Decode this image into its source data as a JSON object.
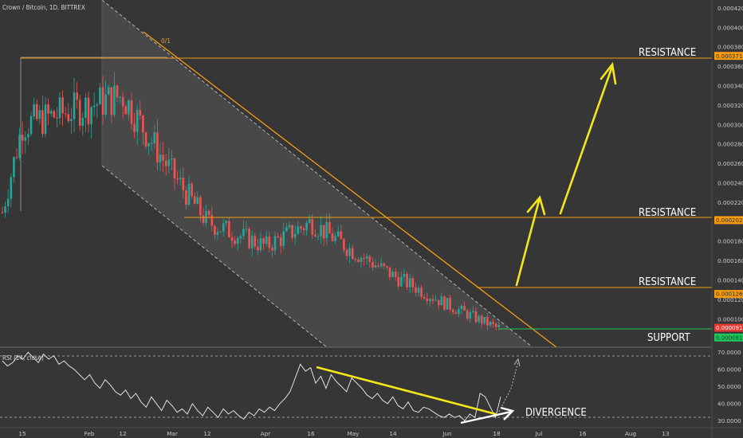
{
  "header": {
    "symbol": "Crown / Bitcoin, 1D, BITTREX",
    "rsi_label": "RSI (14, close)"
  },
  "colors": {
    "background": "#363636",
    "channel_fill": "#4a4a4a",
    "up": "#26a69a",
    "down": "#ef5350",
    "orange": "#f39c12",
    "yellow": "#f5e61a",
    "support_green": "#22c55e"
  },
  "fib_label": "0/1",
  "chart_data": [
    {
      "type": "candlestick",
      "title": "",
      "y_ticks": [
        "0.00042000",
        "0.00040000",
        "0.00038000",
        "0.00036000",
        "0.00034000",
        "0.00032000",
        "0.00030000",
        "0.00028000",
        "0.00026000",
        "0.00024000",
        "0.00022000",
        "0.00020000",
        "0.00018000",
        "0.00016000",
        "0.00014000",
        "0.00012000",
        "0.00010000",
        "0.00008000"
      ],
      "x_ticks": [
        "15",
        "Feb",
        "12",
        "Mar",
        "12",
        "Apr",
        "16",
        "May",
        "14",
        "Jun",
        "18",
        "Jul",
        "16",
        "Aug",
        "13"
      ],
      "ylim": [
        7.12e-05,
        0.0004285
      ],
      "price_levels": [
        {
          "label": "RESISTANCE",
          "price_tag": "0.00037100",
          "value": 0.000371
        },
        {
          "label": "RESISTANCE",
          "price_tag": "0.00020200",
          "value": 0.000202
        },
        {
          "label": "RESISTANCE",
          "price_tag": "0.00012600",
          "value": 0.000126
        },
        {
          "label": "SUPPORT",
          "price_tag": "0.00008125",
          "value": 8.12e-05
        }
      ],
      "current_price_tag": "0.00009125",
      "current_price": 9.12e-05,
      "series_overview": [
        {
          "date": "Jan 15",
          "close": 0.0003
        },
        {
          "date": "Feb",
          "close": 0.00032
        },
        {
          "date": "Feb 12",
          "close": 0.00033
        },
        {
          "date": "Mar",
          "close": 0.00025
        },
        {
          "date": "Mar 12",
          "close": 0.0002
        },
        {
          "date": "Apr",
          "close": 0.000175
        },
        {
          "date": "Apr 16",
          "close": 0.0002
        },
        {
          "date": "May",
          "close": 0.00017
        },
        {
          "date": "May 14",
          "close": 0.000145
        },
        {
          "date": "Jun",
          "close": 0.000115
        },
        {
          "date": "Jun 18",
          "close": 9.12e-05
        }
      ]
    },
    {
      "type": "line",
      "title": "",
      "y_ticks": [
        "70.0000",
        "60.0000",
        "50.0000",
        "40.0000",
        "30.0000"
      ],
      "ylim": [
        26.5,
        72.5
      ],
      "series": [
        {
          "values": [
            65,
            62,
            64,
            68,
            66,
            70,
            67,
            64,
            69,
            66,
            68,
            63,
            65,
            62,
            60,
            57,
            54,
            57,
            52,
            49,
            54,
            51,
            47,
            45,
            48,
            43,
            46,
            41,
            38,
            44,
            40,
            36,
            42,
            39,
            35,
            37,
            34,
            40,
            36,
            33,
            38,
            35,
            32,
            37,
            34,
            36,
            33,
            31,
            35,
            33,
            37,
            35,
            38,
            36,
            40,
            43,
            47,
            55,
            63,
            59,
            61,
            52,
            56,
            49,
            57,
            53,
            50,
            47,
            55,
            52,
            49,
            45,
            43,
            46,
            42,
            40,
            44,
            39,
            37,
            41,
            36,
            35,
            38,
            37,
            35,
            33,
            32,
            34,
            32,
            33,
            30,
            34,
            32,
            46,
            44,
            38,
            32,
            44
          ]
        }
      ],
      "annotation": "DIVERGENCE"
    }
  ]
}
